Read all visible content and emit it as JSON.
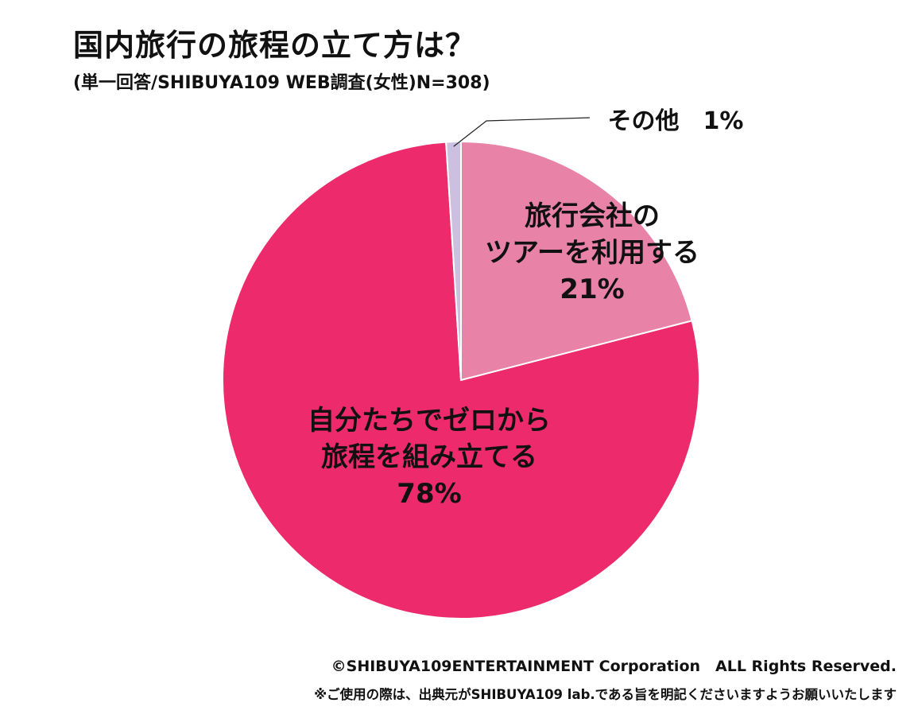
{
  "title": "国内旅行の旅程の立て方は？",
  "subtitle": "(単一回答/SHIBUYA109 WEB調査(女性)N=308)",
  "chart_data": {
    "type": "pie",
    "slices": [
      {
        "label_lines": [
          "旅行会社の",
          "ツアーを利用する"
        ],
        "value": 21,
        "value_label": "21%",
        "color": "#e882a7"
      },
      {
        "label_lines": [
          "自分たちでゼロから",
          "旅程を組み立てる"
        ],
        "value": 78,
        "value_label": "78%",
        "color": "#ec2a6c"
      },
      {
        "label_lines": [
          "その他"
        ],
        "value": 1,
        "value_label": "1%",
        "color": "#cdbfe0"
      }
    ],
    "start": "12 o'clock",
    "direction": "clockwise",
    "legend": "none"
  },
  "footer": {
    "copyright": "©SHIBUYA109ENTERTAINMENT Corporation　ALL Rights Reserved.",
    "notice": "※ご使用の際は、出典元がSHIBUYA109 lab.である旨を明記くださいますようお願いいたします"
  }
}
